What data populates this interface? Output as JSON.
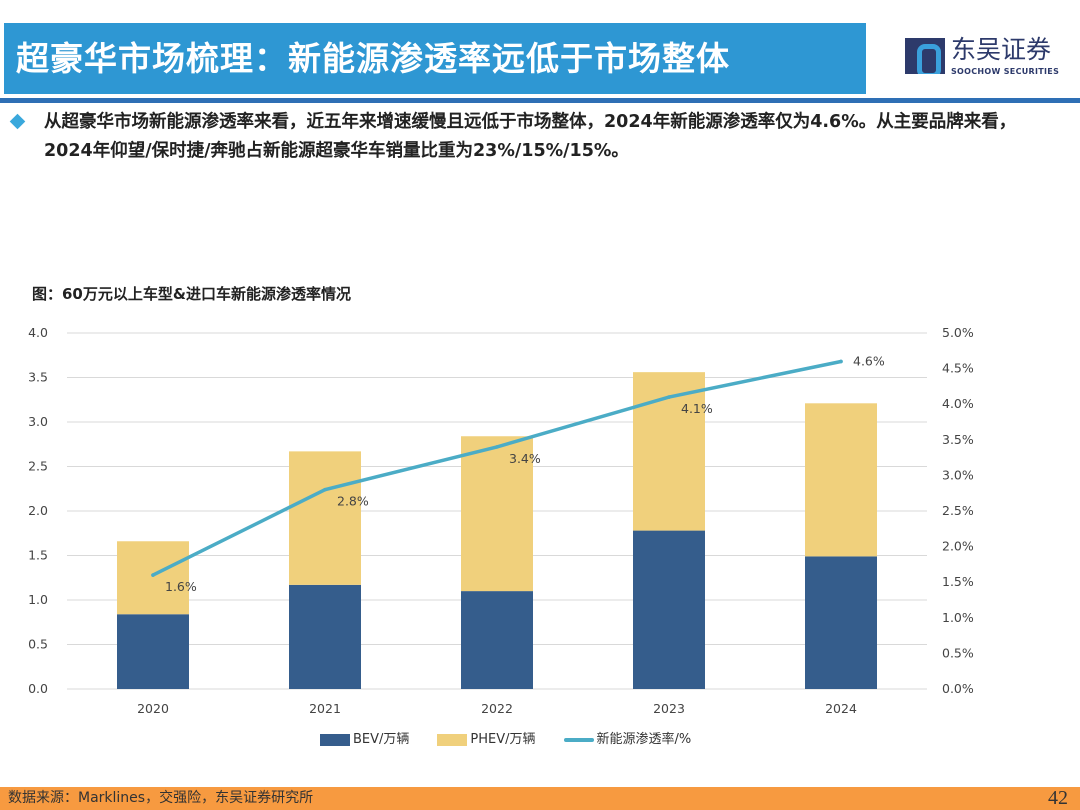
{
  "header": {
    "title": "超豪华市场梳理：新能源渗透率远低于市场整体",
    "logo_cn": "东吴证券",
    "logo_en": "SOOCHOW SECURITIES"
  },
  "summary": "从超豪华市场新能源渗透率来看，近五年来增速缓慢且远低于市场整体，2024年新能源渗透率仅为4.6%。从主要品牌来看，2024年仰望/保时捷/奔驰占新能源超豪华车销量比重为23%/15%/15%。",
  "chart_title": "图：60万元以上车型&进口车新能源渗透率情况",
  "chart_data": {
    "type": "bar",
    "stacked": true,
    "categories": [
      "2020",
      "2021",
      "2022",
      "2023",
      "2024"
    ],
    "series": [
      {
        "name": "BEV/万辆",
        "type": "bar",
        "axis": "left",
        "color": "#355d8c",
        "values": [
          0.84,
          1.17,
          1.1,
          1.78,
          1.49
        ]
      },
      {
        "name": "PHEV/万辆",
        "type": "bar",
        "axis": "left",
        "color": "#f0d07c",
        "values": [
          0.82,
          1.5,
          1.74,
          1.78,
          1.72
        ]
      },
      {
        "name": "新能源渗透率/%",
        "type": "line",
        "axis": "right",
        "color": "#4bacc6",
        "values": [
          1.6,
          2.8,
          3.4,
          4.1,
          4.6
        ],
        "labels": [
          "1.6%",
          "2.8%",
          "3.4%",
          "4.1%",
          "4.6%"
        ]
      }
    ],
    "ylim": [
      0,
      4.0
    ],
    "yticks": [
      "0.0",
      "0.5",
      "1.0",
      "1.5",
      "2.0",
      "2.5",
      "3.0",
      "3.5",
      "4.0"
    ],
    "y2lim": [
      0,
      5.0
    ],
    "y2ticks": [
      "0.0%",
      "0.5%",
      "1.0%",
      "1.5%",
      "2.0%",
      "2.5%",
      "3.0%",
      "3.5%",
      "4.0%",
      "4.5%",
      "5.0%"
    ],
    "grid": true,
    "legend": "bottom"
  },
  "footer": {
    "source": "数据来源：Marklines，交强险，东吴证券研究所",
    "page": "42"
  }
}
